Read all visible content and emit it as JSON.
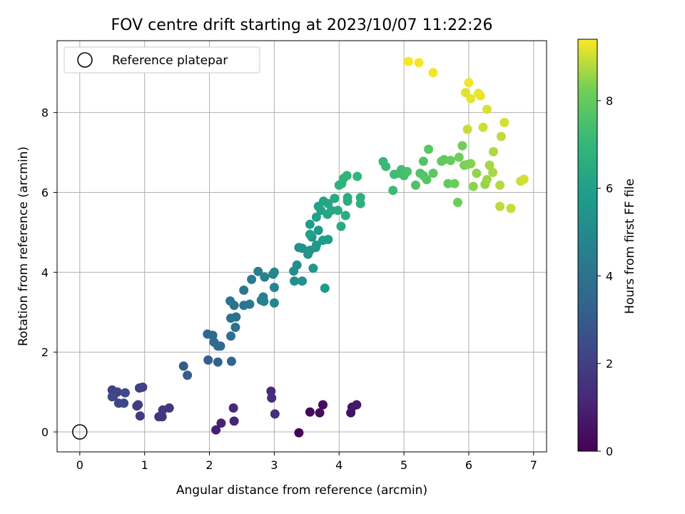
{
  "chart_data": {
    "type": "scatter",
    "title": "FOV centre drift starting at 2023/10/07 11:22:26",
    "xlabel": "Angular distance from reference (arcmin)",
    "ylabel": "Rotation from reference (arcmin)",
    "xlim": [
      -0.35,
      7.2
    ],
    "ylim": [
      -0.5,
      9.8
    ],
    "xticks": [
      "0",
      "1",
      "2",
      "3",
      "4",
      "5",
      "6",
      "7"
    ],
    "yticks": [
      "0",
      "2",
      "4",
      "6",
      "8"
    ],
    "grid": true,
    "legend": {
      "placement": "top-left",
      "entries": [
        "Reference platepar"
      ]
    },
    "reference_point": {
      "x": 0,
      "y": 0
    },
    "colorbar": {
      "label": "Hours from first FF file",
      "range": [
        0,
        9.4
      ],
      "ticks": [
        "0",
        "2",
        "4",
        "6",
        "8"
      ],
      "colormap": "viridis"
    },
    "points": [
      [
        3.38,
        -0.02,
        0.1
      ],
      [
        3.55,
        0.5,
        0.2
      ],
      [
        3.7,
        0.48,
        0.3
      ],
      [
        3.75,
        0.68,
        0.4
      ],
      [
        4.18,
        0.48,
        0.5
      ],
      [
        4.2,
        0.62,
        0.6
      ],
      [
        4.27,
        0.68,
        0.7
      ],
      [
        2.1,
        0.05,
        0.9
      ],
      [
        2.18,
        0.22,
        1.0
      ],
      [
        2.38,
        0.27,
        1.1
      ],
      [
        2.37,
        0.6,
        1.2
      ],
      [
        2.95,
        1.02,
        1.3
      ],
      [
        2.96,
        0.85,
        1.35
      ],
      [
        3.01,
        0.45,
        1.4
      ],
      [
        1.22,
        0.38,
        1.6
      ],
      [
        1.27,
        0.38,
        1.65
      ],
      [
        1.28,
        0.55,
        1.7
      ],
      [
        1.38,
        0.6,
        1.75
      ],
      [
        0.93,
        0.4,
        1.8
      ],
      [
        0.88,
        0.65,
        1.9
      ],
      [
        0.9,
        0.68,
        1.95
      ],
      [
        0.92,
        1.1,
        2.0
      ],
      [
        0.97,
        1.12,
        2.05
      ],
      [
        0.5,
        1.05,
        2.1
      ],
      [
        0.58,
        1.0,
        2.15
      ],
      [
        0.52,
        0.9,
        2.2
      ],
      [
        0.6,
        0.72,
        2.25
      ],
      [
        0.68,
        0.72,
        2.3
      ],
      [
        0.7,
        0.98,
        2.35
      ],
      [
        0.5,
        0.88,
        2.4
      ],
      [
        1.6,
        1.65,
        3.0
      ],
      [
        1.66,
        1.42,
        3.1
      ],
      [
        1.98,
        1.8,
        3.2
      ],
      [
        2.13,
        1.75,
        3.3
      ],
      [
        2.34,
        1.77,
        3.4
      ],
      [
        1.97,
        2.45,
        3.5
      ],
      [
        2.05,
        2.42,
        3.55
      ],
      [
        2.07,
        2.25,
        3.6
      ],
      [
        2.13,
        2.15,
        3.65
      ],
      [
        2.17,
        2.15,
        3.7
      ],
      [
        2.33,
        2.4,
        3.8
      ],
      [
        2.4,
        2.62,
        3.85
      ],
      [
        2.33,
        2.85,
        3.9
      ],
      [
        2.41,
        2.88,
        3.95
      ],
      [
        2.32,
        3.28,
        4.0
      ],
      [
        2.38,
        3.17,
        4.05
      ],
      [
        2.53,
        3.55,
        4.1
      ],
      [
        2.53,
        3.17,
        4.15
      ],
      [
        2.62,
        3.2,
        4.2
      ],
      [
        2.65,
        3.82,
        4.4
      ],
      [
        2.75,
        4.02,
        4.5
      ],
      [
        2.8,
        3.3,
        4.55
      ],
      [
        2.83,
        3.38,
        4.6
      ],
      [
        2.84,
        3.27,
        4.65
      ],
      [
        2.85,
        3.88,
        4.7
      ],
      [
        2.98,
        3.95,
        4.75
      ],
      [
        3.0,
        3.62,
        4.8
      ],
      [
        3.0,
        3.23,
        4.85
      ],
      [
        3.0,
        4.0,
        4.9
      ],
      [
        3.3,
        4.03,
        5.1
      ],
      [
        3.31,
        3.78,
        5.15
      ],
      [
        3.35,
        4.18,
        5.2
      ],
      [
        3.38,
        4.62,
        5.25
      ],
      [
        3.43,
        3.78,
        5.3
      ],
      [
        3.43,
        4.6,
        5.35
      ],
      [
        3.52,
        4.45,
        5.4
      ],
      [
        3.55,
        4.55,
        5.45
      ],
      [
        3.58,
        4.88,
        5.5
      ],
      [
        3.6,
        4.1,
        5.55
      ],
      [
        3.64,
        4.62,
        5.6
      ],
      [
        3.65,
        4.68,
        5.65
      ],
      [
        3.68,
        5.05,
        5.7
      ],
      [
        3.75,
        4.8,
        5.75
      ],
      [
        3.78,
        3.6,
        5.8
      ],
      [
        3.83,
        4.82,
        5.85
      ],
      [
        3.55,
        5.2,
        5.9
      ],
      [
        3.55,
        4.95,
        5.95
      ],
      [
        3.65,
        5.38,
        6.0
      ],
      [
        3.68,
        5.65,
        6.05
      ],
      [
        3.72,
        5.55,
        6.1
      ],
      [
        3.76,
        5.78,
        6.15
      ],
      [
        3.82,
        5.45,
        6.2
      ],
      [
        3.83,
        5.72,
        6.25
      ],
      [
        3.88,
        5.55,
        6.3
      ],
      [
        3.93,
        5.85,
        6.35
      ],
      [
        3.98,
        5.55,
        6.4
      ],
      [
        4.03,
        5.15,
        6.45
      ],
      [
        4.1,
        5.42,
        6.5
      ],
      [
        4.13,
        5.87,
        6.55
      ],
      [
        4.13,
        5.78,
        6.6
      ],
      [
        4.33,
        5.87,
        6.65
      ],
      [
        4.33,
        5.72,
        6.7
      ],
      [
        4.0,
        6.18,
        6.75
      ],
      [
        4.04,
        6.22,
        6.8
      ],
      [
        4.07,
        6.35,
        6.85
      ],
      [
        4.12,
        6.42,
        6.9
      ],
      [
        4.28,
        6.4,
        6.95
      ],
      [
        4.68,
        6.77,
        7.1
      ],
      [
        4.72,
        6.65,
        7.15
      ],
      [
        4.83,
        6.05,
        7.2
      ],
      [
        4.85,
        6.45,
        7.25
      ],
      [
        4.93,
        6.48,
        7.3
      ],
      [
        4.96,
        6.57,
        7.35
      ],
      [
        5.0,
        6.42,
        7.4
      ],
      [
        5.02,
        6.48,
        7.45
      ],
      [
        5.05,
        6.52,
        7.5
      ],
      [
        5.18,
        6.18,
        7.55
      ],
      [
        5.25,
        6.48,
        7.6
      ],
      [
        5.3,
        6.78,
        7.65
      ],
      [
        5.3,
        6.42,
        7.7
      ],
      [
        5.35,
        6.32,
        7.75
      ],
      [
        5.38,
        7.08,
        7.8
      ],
      [
        5.45,
        6.48,
        7.85
      ],
      [
        5.58,
        6.78,
        7.9
      ],
      [
        5.62,
        6.82,
        7.95
      ],
      [
        5.68,
        6.22,
        8.0
      ],
      [
        5.72,
        6.8,
        8.05
      ],
      [
        5.78,
        6.22,
        8.1
      ],
      [
        5.83,
        5.75,
        8.15
      ],
      [
        5.85,
        6.88,
        8.2
      ],
      [
        5.9,
        7.17,
        8.25
      ],
      [
        5.93,
        6.68,
        8.3
      ],
      [
        5.98,
        6.7,
        8.35
      ],
      [
        6.03,
        6.72,
        8.4
      ],
      [
        6.07,
        6.15,
        8.45
      ],
      [
        6.12,
        6.48,
        8.5
      ],
      [
        6.25,
        6.2,
        8.55
      ],
      [
        6.28,
        6.32,
        8.6
      ],
      [
        6.32,
        6.68,
        8.65
      ],
      [
        6.37,
        6.5,
        8.7
      ],
      [
        6.38,
        7.02,
        8.75
      ],
      [
        6.48,
        6.18,
        8.8
      ],
      [
        6.48,
        5.65,
        8.85
      ],
      [
        6.5,
        7.4,
        8.9
      ],
      [
        6.65,
        5.6,
        8.95
      ],
      [
        6.8,
        6.28,
        9.0
      ],
      [
        6.85,
        6.33,
        9.05
      ],
      [
        5.98,
        7.58,
        8.95
      ],
      [
        6.22,
        7.63,
        9.0
      ],
      [
        6.55,
        7.75,
        9.05
      ],
      [
        6.28,
        8.08,
        9.1
      ],
      [
        5.95,
        8.5,
        9.15
      ],
      [
        6.03,
        8.35,
        9.2
      ],
      [
        6.15,
        8.48,
        9.22
      ],
      [
        6.18,
        8.42,
        9.25
      ],
      [
        6.0,
        8.75,
        9.3
      ],
      [
        5.45,
        9.0,
        9.32
      ],
      [
        5.23,
        9.25,
        9.34
      ],
      [
        5.07,
        9.28,
        9.36
      ]
    ]
  }
}
